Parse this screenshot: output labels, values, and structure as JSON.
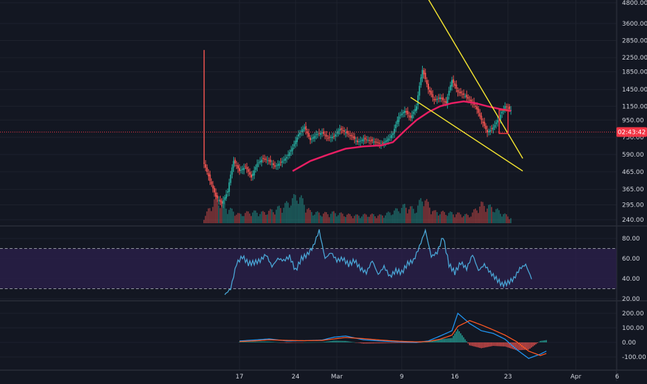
{
  "theme": {
    "background": "#131722",
    "grid": "#1e222d",
    "divider": "#2a2e39",
    "axis_text": "#d1d4dc",
    "up": "#26a69a",
    "down": "#ef5350",
    "ma": "#e91e63",
    "trendline": "#f0e130",
    "rsi_line": "#4aa8d8",
    "rsi_band": "#2a1f4a",
    "macd": "#2196f3",
    "signal": "#ff5722",
    "price_marker": "#f23645"
  },
  "price_marker_label": "02:43:42",
  "chart_data": [
    {
      "type": "candlestick",
      "scale": "log",
      "x_ticks": [
        "17",
        "24",
        "Mar",
        "9",
        "16",
        "23",
        "Apr",
        "6"
      ],
      "y_ticks": [
        4800,
        3600,
        2850,
        2250,
        1850,
        1450,
        1150,
        950,
        750,
        590,
        465,
        365,
        295,
        240
      ],
      "y_tick_labels": [
        "4800.00",
        "3600.00",
        "2850.00",
        "2250.00",
        "1850.00",
        "1450.00",
        "1150.00",
        "950.00",
        "750.00",
        "590.00",
        "465.00",
        "365.00",
        "295.00",
        "240.00"
      ],
      "last_price": 805,
      "close_series": [
        [
          0,
          520
        ],
        [
          2,
          410
        ],
        [
          4,
          330
        ],
        [
          6,
          300
        ],
        [
          8,
          355
        ],
        [
          10,
          540
        ],
        [
          12,
          470
        ],
        [
          14,
          500
        ],
        [
          16,
          430
        ],
        [
          18,
          520
        ],
        [
          20,
          560
        ],
        [
          22,
          540
        ],
        [
          24,
          500
        ],
        [
          26,
          530
        ],
        [
          28,
          570
        ],
        [
          30,
          650
        ],
        [
          32,
          780
        ],
        [
          34,
          860
        ],
        [
          36,
          720
        ],
        [
          38,
          780
        ],
        [
          40,
          800
        ],
        [
          42,
          740
        ],
        [
          44,
          760
        ],
        [
          46,
          840
        ],
        [
          48,
          800
        ],
        [
          50,
          760
        ],
        [
          52,
          700
        ],
        [
          54,
          730
        ],
        [
          56,
          720
        ],
        [
          58,
          700
        ],
        [
          60,
          680
        ],
        [
          62,
          720
        ],
        [
          64,
          790
        ],
        [
          66,
          1000
        ],
        [
          68,
          1080
        ],
        [
          70,
          980
        ],
        [
          72,
          1150
        ],
        [
          74,
          1900
        ],
        [
          76,
          1450
        ],
        [
          78,
          1250
        ],
        [
          80,
          1300
        ],
        [
          82,
          1200
        ],
        [
          84,
          1650
        ],
        [
          86,
          1400
        ],
        [
          88,
          1350
        ],
        [
          90,
          1250
        ],
        [
          92,
          1150
        ],
        [
          94,
          950
        ],
        [
          96,
          800
        ],
        [
          98,
          860
        ],
        [
          100,
          980
        ],
        [
          102,
          1150
        ],
        [
          104,
          1090
        ]
      ],
      "ma_series": [
        [
          30,
          470
        ],
        [
          36,
          540
        ],
        [
          42,
          590
        ],
        [
          48,
          640
        ],
        [
          54,
          660
        ],
        [
          60,
          670
        ],
        [
          64,
          700
        ],
        [
          68,
          820
        ],
        [
          72,
          950
        ],
        [
          76,
          1060
        ],
        [
          80,
          1150
        ],
        [
          84,
          1200
        ],
        [
          88,
          1230
        ],
        [
          92,
          1200
        ],
        [
          96,
          1150
        ],
        [
          100,
          1110
        ],
        [
          104,
          1080
        ]
      ],
      "volume_series": [
        [
          0,
          60
        ],
        [
          4,
          260
        ],
        [
          8,
          160
        ],
        [
          12,
          90
        ],
        [
          16,
          120
        ],
        [
          20,
          110
        ],
        [
          24,
          140
        ],
        [
          28,
          200
        ],
        [
          32,
          300
        ],
        [
          36,
          120
        ],
        [
          40,
          100
        ],
        [
          44,
          110
        ],
        [
          48,
          90
        ],
        [
          52,
          80
        ],
        [
          56,
          90
        ],
        [
          60,
          80
        ],
        [
          64,
          120
        ],
        [
          68,
          180
        ],
        [
          72,
          140
        ],
        [
          74,
          280
        ],
        [
          78,
          120
        ],
        [
          82,
          110
        ],
        [
          86,
          100
        ],
        [
          90,
          80
        ],
        [
          94,
          200
        ],
        [
          98,
          160
        ],
        [
          102,
          90
        ],
        [
          104,
          60
        ]
      ],
      "trendlines": [
        {
          "from": [
            64,
            11500
          ],
          "to": [
            108,
            560
          ]
        },
        {
          "from": [
            70,
            1300
          ],
          "to": [
            108,
            470
          ]
        }
      ],
      "annotation_box": {
        "from": [
          100,
          790
        ],
        "to": [
          103,
          1090
        ]
      }
    },
    {
      "type": "line",
      "name_hidden": "rsi",
      "y_ticks": [
        80,
        60,
        40,
        20
      ],
      "y_tick_labels": [
        "80.00",
        "60.00",
        "40.00",
        "20.00"
      ],
      "ylim": [
        18,
        92
      ],
      "overbought": 70,
      "oversold": 30,
      "series": [
        [
          0,
          24
        ],
        [
          2,
          30
        ],
        [
          4,
          55
        ],
        [
          6,
          62
        ],
        [
          8,
          55
        ],
        [
          10,
          56
        ],
        [
          12,
          58
        ],
        [
          14,
          64
        ],
        [
          16,
          52
        ],
        [
          18,
          60
        ],
        [
          20,
          58
        ],
        [
          22,
          62
        ],
        [
          24,
          48
        ],
        [
          26,
          60
        ],
        [
          28,
          64
        ],
        [
          30,
          72
        ],
        [
          32,
          88
        ],
        [
          34,
          60
        ],
        [
          36,
          66
        ],
        [
          38,
          58
        ],
        [
          40,
          60
        ],
        [
          42,
          54
        ],
        [
          44,
          58
        ],
        [
          46,
          50
        ],
        [
          48,
          46
        ],
        [
          50,
          58
        ],
        [
          52,
          44
        ],
        [
          54,
          52
        ],
        [
          56,
          42
        ],
        [
          58,
          48
        ],
        [
          60,
          46
        ],
        [
          62,
          55
        ],
        [
          64,
          58
        ],
        [
          66,
          72
        ],
        [
          68,
          88
        ],
        [
          70,
          62
        ],
        [
          72,
          66
        ],
        [
          74,
          82
        ],
        [
          76,
          54
        ],
        [
          78,
          46
        ],
        [
          80,
          56
        ],
        [
          82,
          50
        ],
        [
          84,
          64
        ],
        [
          86,
          48
        ],
        [
          88,
          54
        ],
        [
          90,
          46
        ],
        [
          92,
          40
        ],
        [
          94,
          34
        ],
        [
          96,
          36
        ],
        [
          98,
          40
        ],
        [
          100,
          50
        ],
        [
          102,
          54
        ],
        [
          104,
          40
        ]
      ]
    },
    {
      "type": "line",
      "name_hidden": "macd",
      "y_ticks": [
        200,
        100,
        0,
        -100
      ],
      "y_tick_labels": [
        "200.00",
        "100.00",
        "0.00",
        "-100.00"
      ],
      "ylim": [
        -150,
        240
      ],
      "macd_series": [
        [
          0,
          10
        ],
        [
          6,
          18
        ],
        [
          10,
          24
        ],
        [
          16,
          10
        ],
        [
          22,
          12
        ],
        [
          28,
          16
        ],
        [
          32,
          36
        ],
        [
          36,
          44
        ],
        [
          42,
          18
        ],
        [
          48,
          10
        ],
        [
          54,
          4
        ],
        [
          60,
          0
        ],
        [
          64,
          10
        ],
        [
          68,
          44
        ],
        [
          72,
          80
        ],
        [
          74,
          200
        ],
        [
          78,
          130
        ],
        [
          82,
          80
        ],
        [
          86,
          62
        ],
        [
          90,
          22
        ],
        [
          94,
          -50
        ],
        [
          98,
          -110
        ],
        [
          102,
          -80
        ],
        [
          104,
          -60
        ]
      ],
      "signal_series": [
        [
          0,
          6
        ],
        [
          6,
          12
        ],
        [
          10,
          18
        ],
        [
          16,
          14
        ],
        [
          22,
          12
        ],
        [
          28,
          14
        ],
        [
          32,
          24
        ],
        [
          36,
          34
        ],
        [
          42,
          26
        ],
        [
          48,
          16
        ],
        [
          54,
          8
        ],
        [
          60,
          4
        ],
        [
          64,
          6
        ],
        [
          68,
          22
        ],
        [
          72,
          50
        ],
        [
          74,
          110
        ],
        [
          78,
          150
        ],
        [
          82,
          120
        ],
        [
          86,
          86
        ],
        [
          90,
          50
        ],
        [
          94,
          4
        ],
        [
          98,
          -60
        ],
        [
          102,
          -90
        ],
        [
          104,
          -76
        ]
      ]
    }
  ]
}
